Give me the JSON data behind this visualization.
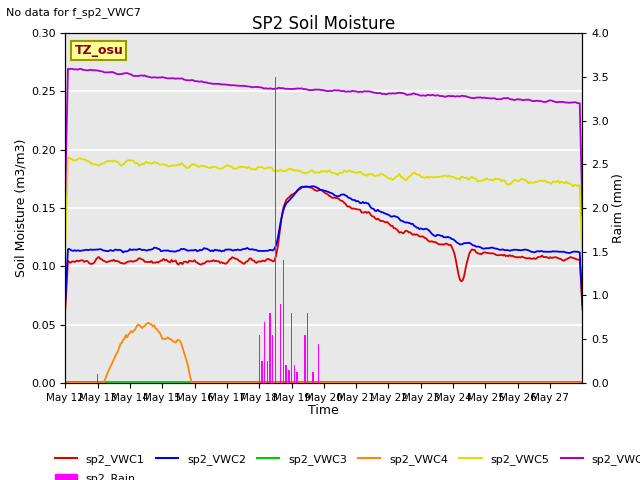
{
  "title": "SP2 Soil Moisture",
  "subtitle": "No data for f_sp2_VWC7",
  "xlabel": "Time",
  "ylabel_left": "Soil Moisture (m3/m3)",
  "ylabel_right": "Raim (mm)",
  "tz_label": "TZ_osu",
  "ylim_left": [
    0.0,
    0.3
  ],
  "ylim_right": [
    0.0,
    4.0
  ],
  "background_color": "#e8e8e8",
  "colors": {
    "sp2_VWC1": "#dd0000",
    "sp2_VWC2": "#0000ee",
    "sp2_VWC3": "#00cc00",
    "sp2_VWC4": "#ff8800",
    "sp2_VWC5": "#dddd00",
    "sp2_VWC6": "#aa00cc",
    "sp2_Rain": "#ff00ff"
  },
  "x_tick_labels": [
    "May 12",
    "May 13",
    "May 14",
    "May 15",
    "May 16",
    "May 17",
    "May 18",
    "May 19",
    "May 20",
    "May 21",
    "May 22",
    "May 23",
    "May 24",
    "May 25",
    "May 26",
    "May 27"
  ],
  "x_ticks_positions": [
    0,
    24,
    48,
    72,
    96,
    120,
    144,
    168,
    192,
    216,
    240,
    264,
    288,
    312,
    336,
    360
  ],
  "yticks_left": [
    0.0,
    0.05,
    0.1,
    0.15,
    0.2,
    0.25,
    0.3
  ],
  "yticks_right": [
    0.0,
    0.5,
    1.0,
    1.5,
    2.0,
    2.5,
    3.0,
    3.5,
    4.0
  ]
}
